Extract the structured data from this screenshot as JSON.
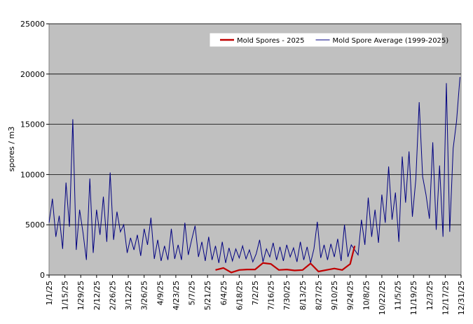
{
  "chart_data": {
    "type": "line",
    "y_label": "spores / m3",
    "xlim": [
      0,
      364
    ],
    "xticks": [
      {
        "value": 0,
        "label": "1/1/25"
      },
      {
        "value": 14,
        "label": "1/15/25"
      },
      {
        "value": 28,
        "label": "1/29/25"
      },
      {
        "value": 42,
        "label": "2/12/25"
      },
      {
        "value": 56,
        "label": "2/26/25"
      },
      {
        "value": 70,
        "label": "3/12/25"
      },
      {
        "value": 84,
        "label": "3/26/25"
      },
      {
        "value": 98,
        "label": "4/9/25"
      },
      {
        "value": 112,
        "label": "4/23/25"
      },
      {
        "value": 126,
        "label": "5/7/25"
      },
      {
        "value": 140,
        "label": "5/21/25"
      },
      {
        "value": 154,
        "label": "6/4/25"
      },
      {
        "value": 168,
        "label": "6/18/25"
      },
      {
        "value": 182,
        "label": "7/2/25"
      },
      {
        "value": 196,
        "label": "7/16/25"
      },
      {
        "value": 210,
        "label": "7/30/25"
      },
      {
        "value": 224,
        "label": "8/13/25"
      },
      {
        "value": 238,
        "label": "8/27/25"
      },
      {
        "value": 252,
        "label": "9/10/25"
      },
      {
        "value": 266,
        "label": "9/24/25"
      },
      {
        "value": 280,
        "label": "10/8/25"
      },
      {
        "value": 294,
        "label": "10/22/25"
      },
      {
        "value": 308,
        "label": "11/5/25"
      },
      {
        "value": 322,
        "label": "11/19/25"
      },
      {
        "value": 336,
        "label": "12/3/25"
      },
      {
        "value": 350,
        "label": "12/17/25"
      },
      {
        "value": 364,
        "label": "12/31/25"
      }
    ],
    "ylim": [
      0,
      25000
    ],
    "yticks": [
      0,
      5000,
      10000,
      15000,
      20000,
      25000
    ],
    "grid": true,
    "legend": "top-right",
    "series": [
      {
        "name": "Mold Spores - 2025",
        "color": "#c00000",
        "x": [
          147,
          154,
          161,
          168,
          175,
          182,
          189,
          196,
          203,
          210,
          217,
          224,
          231,
          238,
          245,
          252,
          259,
          266,
          270
        ],
        "values": [
          500,
          700,
          250,
          500,
          550,
          550,
          1200,
          1100,
          500,
          550,
          450,
          500,
          1150,
          350,
          500,
          650,
          500,
          1100,
          2900
        ]
      },
      {
        "name": "Mold Spore Average (1999-2025)",
        "color": "#000080",
        "x": [
          0,
          3,
          6,
          9,
          12,
          15,
          18,
          21,
          24,
          27,
          30,
          33,
          36,
          39,
          42,
          45,
          48,
          51,
          54,
          57,
          60,
          63,
          66,
          69,
          72,
          75,
          78,
          81,
          84,
          87,
          90,
          93,
          96,
          99,
          102,
          105,
          108,
          111,
          114,
          117,
          120,
          123,
          126,
          129,
          132,
          135,
          138,
          141,
          144,
          147,
          150,
          153,
          156,
          159,
          162,
          165,
          168,
          171,
          174,
          177,
          180,
          183,
          186,
          189,
          192,
          195,
          198,
          201,
          204,
          207,
          210,
          213,
          216,
          219,
          222,
          225,
          228,
          231,
          234,
          237,
          240,
          243,
          246,
          249,
          252,
          255,
          258,
          261,
          264,
          267,
          270,
          273,
          276,
          279,
          282,
          285,
          288,
          291,
          294,
          297,
          300,
          303,
          306,
          309,
          312,
          315,
          318,
          321,
          324,
          327,
          330,
          333,
          336,
          339,
          342,
          345,
          348,
          351,
          354,
          357,
          360,
          363
        ],
        "values": [
          5200,
          7600,
          3800,
          5900,
          2600,
          9200,
          4800,
          15500,
          2500,
          6500,
          4200,
          1500,
          9600,
          2200,
          6500,
          4000,
          7800,
          3300,
          10200,
          3500,
          6300,
          4300,
          5000,
          2200,
          3700,
          2500,
          4000,
          1900,
          4600,
          3000,
          5700,
          1600,
          3500,
          1400,
          2900,
          1500,
          4600,
          1600,
          3000,
          1500,
          5200,
          2000,
          3500,
          4900,
          1800,
          3300,
          1400,
          3800,
          1500,
          2900,
          1200,
          3300,
          1200,
          2700,
          1400,
          2600,
          1700,
          2900,
          1600,
          2500,
          1300,
          2100,
          3500,
          1300,
          2600,
          1800,
          3200,
          1500,
          2800,
          1400,
          3000,
          1800,
          2700,
          1300,
          3300,
          1500,
          2800,
          1200,
          2600,
          5300,
          1700,
          3000,
          1500,
          3100,
          1800,
          3600,
          1400,
          5000,
          1800,
          3000,
          2500,
          2000,
          5500,
          3000,
          7700,
          3800,
          6500,
          3200,
          8000,
          5200,
          10800,
          5500,
          8200,
          3300,
          11800,
          7200,
          12300,
          5800,
          9500,
          17200,
          9800,
          8000,
          5600,
          13200,
          4500,
          10900,
          3800,
          19100,
          4300,
          12600,
          15300,
          19700
        ]
      }
    ]
  }
}
